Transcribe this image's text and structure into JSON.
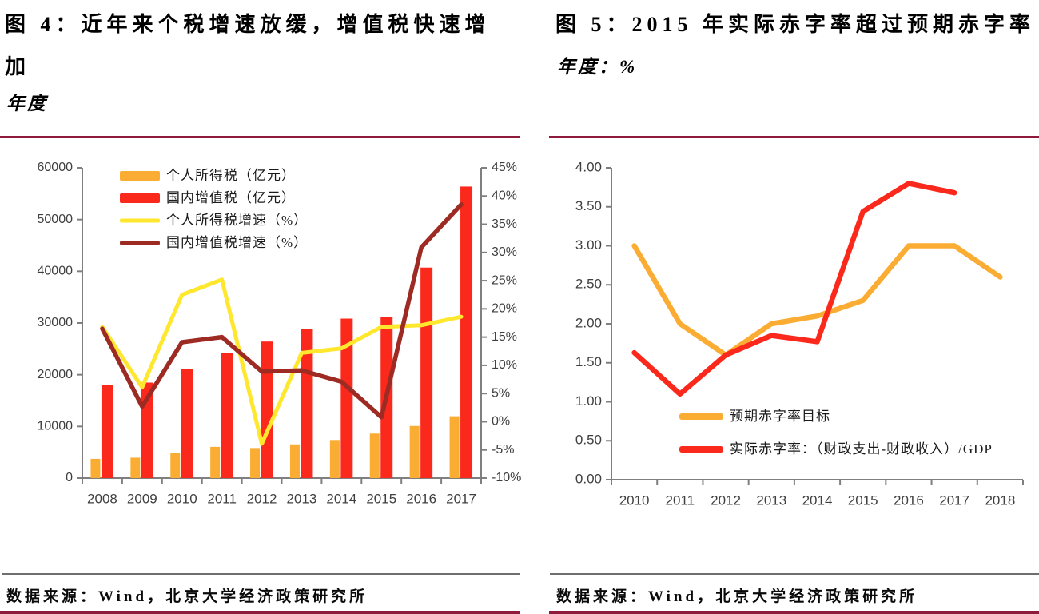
{
  "colors": {
    "orange": "#FAAC33",
    "red": "#FB291B",
    "yellow": "#FFE72E",
    "dark_red": "#9E2B23",
    "separator_maroon": "#8E1B3B",
    "axis_gray": "#7F7F7F",
    "tick_label_gray": "#3F3F3F"
  },
  "left_panel": {
    "title_lines": [
      "图 4：近年来个税增速放缓，增值税快速增",
      "加"
    ],
    "subtitle": "年度",
    "source": "数据来源：Wind，北京大学经济政策研究所"
  },
  "right_panel": {
    "title_lines": [
      "图 5：2015 年实际赤字率超过预期赤字率"
    ],
    "subtitle": "年度：%",
    "source": "数据来源：Wind，北京大学经济政策研究所"
  },
  "chart_data": [
    {
      "id": "fig4",
      "type": "bar",
      "title": "近年来个税增速放缓，增值税快速增加",
      "xlabel": "年度",
      "categories": [
        "2008",
        "2009",
        "2010",
        "2011",
        "2012",
        "2013",
        "2014",
        "2015",
        "2016",
        "2017"
      ],
      "series": [
        {
          "name": "个人所得税（亿元）",
          "kind": "bar",
          "axis": "left",
          "color": "#FAAC33",
          "values": [
            3722,
            3949,
            4837,
            6054,
            5820,
            6531,
            7377,
            8618,
            10089,
            11966
          ]
        },
        {
          "name": "国内增值税（亿元）",
          "kind": "bar",
          "axis": "left",
          "color": "#FB291B",
          "values": [
            17996,
            18481,
            21093,
            24266,
            26416,
            28810,
            30850,
            31109,
            40712,
            56378
          ]
        },
        {
          "name": "个人所得税增速（%）",
          "kind": "line",
          "axis": "right",
          "color": "#FFE72E",
          "values": [
            16.8,
            6.1,
            22.5,
            25.2,
            -3.9,
            12.2,
            13.0,
            16.8,
            17.1,
            18.6
          ]
        },
        {
          "name": "国内增值税增速（%）",
          "kind": "line",
          "axis": "right",
          "color": "#9E2B23",
          "values": [
            16.5,
            2.7,
            14.1,
            15.0,
            8.9,
            9.1,
            7.1,
            0.8,
            30.9,
            38.5
          ]
        }
      ],
      "left_axis": {
        "min": 0,
        "max": 60000,
        "tick_labels": [
          "0",
          "10000",
          "20000",
          "30000",
          "40000",
          "50000",
          "60000"
        ]
      },
      "right_axis": {
        "min": -10,
        "max": 45,
        "tick_labels": [
          "-10%",
          "-5%",
          "0%",
          "5%",
          "10%",
          "15%",
          "20%",
          "25%",
          "30%",
          "35%",
          "40%",
          "45%"
        ]
      },
      "grid": false,
      "legend_position": "top-left-inside"
    },
    {
      "id": "fig5",
      "type": "line",
      "title": "2015 年实际赤字率超过预期赤字率",
      "xlabel": "年度",
      "ylabel": "%",
      "categories": [
        "2010",
        "2011",
        "2012",
        "2013",
        "2014",
        "2015",
        "2016",
        "2017",
        "2018"
      ],
      "series": [
        {
          "name": "预期赤字率目标",
          "kind": "line",
          "color": "#FAAC33",
          "values": [
            3.0,
            2.0,
            1.6,
            2.0,
            2.1,
            2.3,
            3.0,
            3.0,
            2.6
          ]
        },
        {
          "name": "实际赤字率：（财政支出-财政收入）/GDP",
          "kind": "line",
          "color": "#FB291B",
          "values": [
            1.63,
            1.1,
            1.6,
            1.85,
            1.77,
            3.44,
            3.8,
            3.68,
            null
          ]
        }
      ],
      "y_axis": {
        "min": 0,
        "max": 4,
        "tick_labels": [
          "0.00",
          "0.50",
          "1.00",
          "1.50",
          "2.00",
          "2.50",
          "3.00",
          "3.50",
          "4.00"
        ]
      },
      "grid": false,
      "legend_position": "inside-bottom-center"
    }
  ]
}
